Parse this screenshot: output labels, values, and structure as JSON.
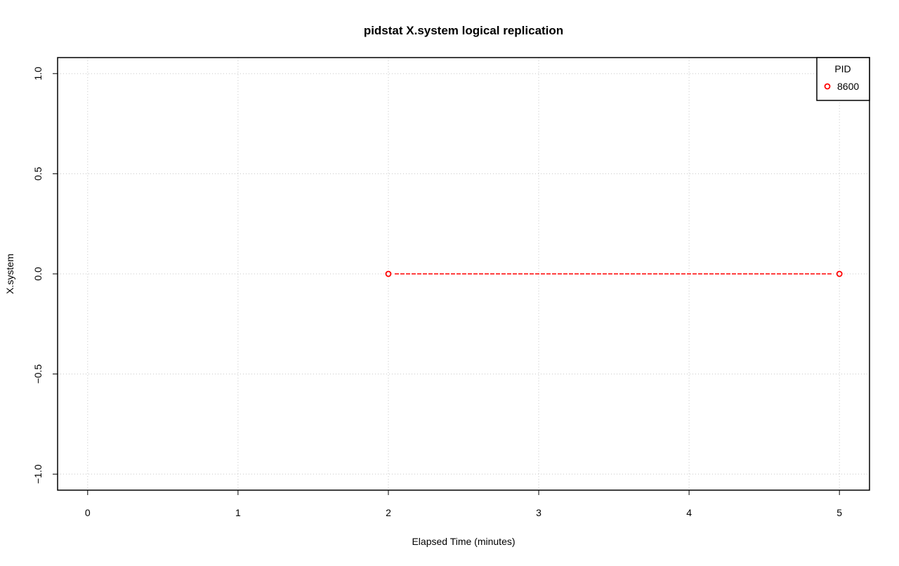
{
  "chart_data": {
    "type": "line",
    "title": "pidstat X.system logical replication",
    "xlabel": "Elapsed Time (minutes)",
    "ylabel": "X.system",
    "xlim": [
      -0.2,
      5.2
    ],
    "ylim": [
      -1.08,
      1.08
    ],
    "xticks": [
      0,
      1,
      2,
      3,
      4,
      5
    ],
    "xtick_labels": [
      "0",
      "1",
      "2",
      "3",
      "4",
      "5"
    ],
    "yticks": [
      -1.0,
      -0.5,
      0.0,
      0.5,
      1.0
    ],
    "ytick_labels": [
      "−1.0",
      "−0.5",
      "0.0",
      "0.5",
      "1.0"
    ],
    "grid": true,
    "legend": {
      "title": "PID",
      "placement": "top-right"
    },
    "series": [
      {
        "name": "8600",
        "color": "#ff0000",
        "marker": "open-circle",
        "line": "dashed",
        "x": [
          2,
          5
        ],
        "y": [
          0,
          0
        ]
      }
    ]
  }
}
